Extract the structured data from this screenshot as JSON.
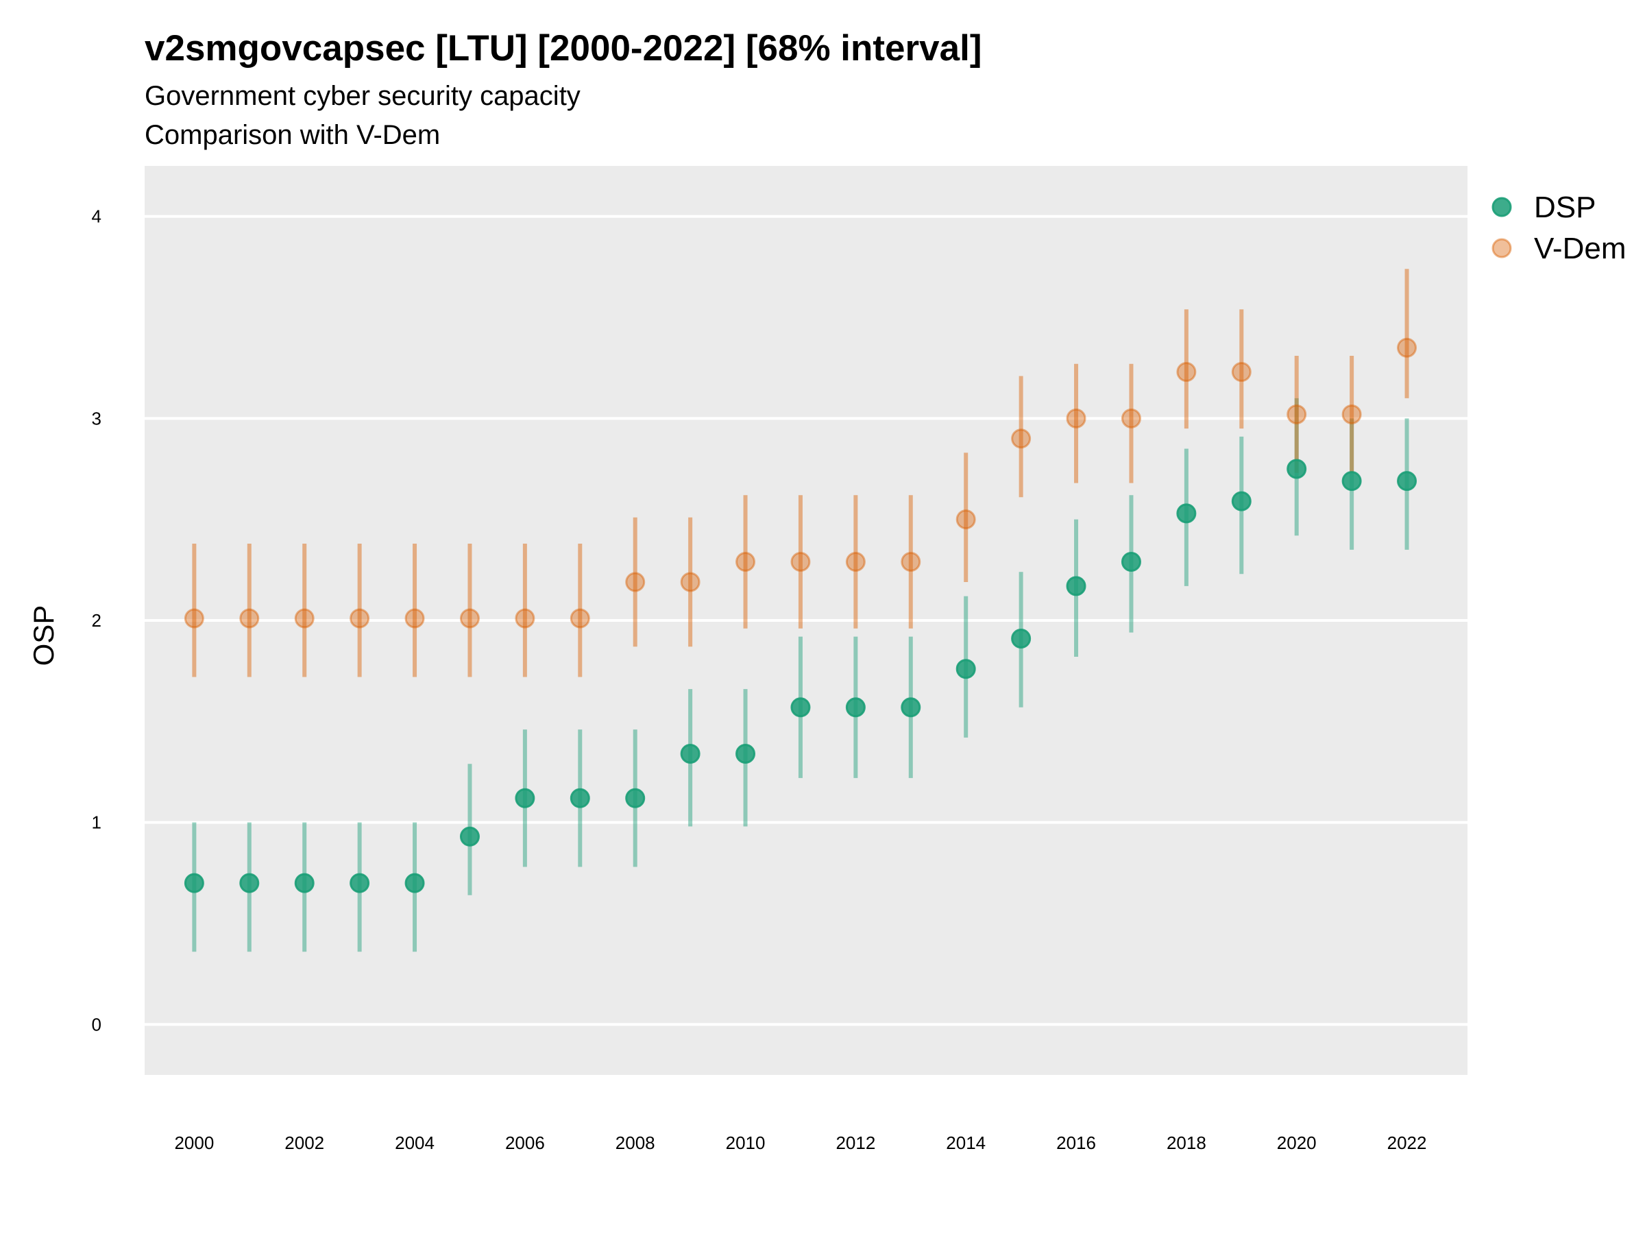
{
  "chart_data": {
    "type": "scatter",
    "title": "v2smgovcapsec [LTU] [2000-2022] [68% interval]",
    "subtitle": [
      "Government cyber security capacity",
      "Comparison with V-Dem"
    ],
    "xlabel": "",
    "ylabel": "OSP",
    "x": [
      2000,
      2001,
      2002,
      2003,
      2004,
      2005,
      2006,
      2007,
      2008,
      2009,
      2010,
      2011,
      2012,
      2013,
      2014,
      2015,
      2016,
      2017,
      2018,
      2019,
      2020,
      2021,
      2022
    ],
    "x_ticks": [
      "2000",
      "2002",
      "2004",
      "2006",
      "2008",
      "2010",
      "2012",
      "2014",
      "2016",
      "2018",
      "2020",
      "2022"
    ],
    "y_ticks": [
      "0",
      "1",
      "2",
      "3",
      "4"
    ],
    "xlim": [
      1999.1,
      2023.1
    ],
    "ylim": [
      -0.25,
      4.25
    ],
    "grid": true,
    "legend_position": "right",
    "series": [
      {
        "name": "DSP",
        "color": "#1b9e77",
        "values": [
          0.7,
          0.7,
          0.7,
          0.7,
          0.7,
          0.93,
          1.12,
          1.12,
          1.12,
          1.34,
          1.34,
          1.57,
          1.57,
          1.57,
          1.76,
          1.91,
          2.17,
          2.29,
          2.53,
          2.59,
          2.75,
          2.69,
          2.69
        ],
        "lower": [
          0.36,
          0.36,
          0.36,
          0.36,
          0.36,
          0.64,
          0.78,
          0.78,
          0.78,
          0.98,
          0.98,
          1.22,
          1.22,
          1.22,
          1.42,
          1.57,
          1.82,
          1.94,
          2.17,
          2.23,
          2.42,
          2.35,
          2.35
        ],
        "upper": [
          1.0,
          1.0,
          1.0,
          1.0,
          1.0,
          1.29,
          1.46,
          1.46,
          1.46,
          1.66,
          1.66,
          1.92,
          1.92,
          1.92,
          2.12,
          2.24,
          2.5,
          2.62,
          2.85,
          2.91,
          3.1,
          3.0,
          3.0
        ]
      },
      {
        "name": "V-Dem",
        "color": "#d95f02",
        "values": [
          2.01,
          2.01,
          2.01,
          2.01,
          2.01,
          2.01,
          2.01,
          2.01,
          2.19,
          2.19,
          2.29,
          2.29,
          2.29,
          2.29,
          2.5,
          2.9,
          3.0,
          3.0,
          3.23,
          3.23,
          3.02,
          3.02,
          3.35
        ],
        "lower": [
          1.72,
          1.72,
          1.72,
          1.72,
          1.72,
          1.72,
          1.72,
          1.72,
          1.87,
          1.87,
          1.96,
          1.96,
          1.96,
          1.96,
          2.19,
          2.61,
          2.68,
          2.68,
          2.95,
          2.95,
          2.73,
          2.73,
          3.1
        ],
        "upper": [
          2.38,
          2.38,
          2.38,
          2.38,
          2.38,
          2.38,
          2.38,
          2.38,
          2.51,
          2.51,
          2.62,
          2.62,
          2.62,
          2.62,
          2.83,
          3.21,
          3.27,
          3.27,
          3.54,
          3.54,
          3.31,
          3.31,
          3.74
        ]
      }
    ]
  }
}
